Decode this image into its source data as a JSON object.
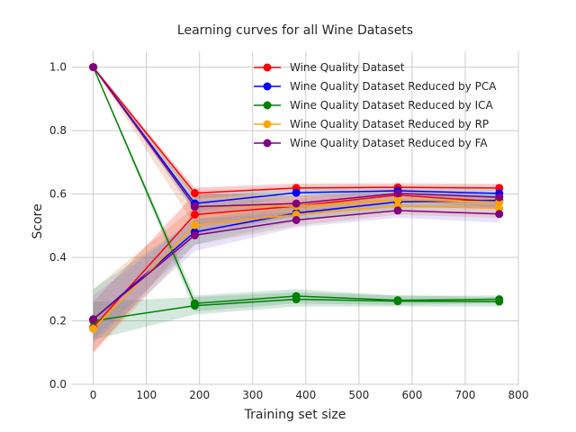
{
  "chart_data": {
    "type": "line",
    "title": "Learning curves for all Wine Datasets",
    "xlabel": "Training set size",
    "ylabel": "Score",
    "xlim": [
      -40,
      800
    ],
    "ylim": [
      0.0,
      1.05
    ],
    "xticks": [
      0,
      100,
      200,
      300,
      400,
      500,
      600,
      700,
      800
    ],
    "yticks": [
      0.0,
      0.2,
      0.4,
      0.6,
      0.8,
      1.0
    ],
    "ytick_labels": [
      "0.0",
      "0.2",
      "0.4",
      "0.6",
      "0.8",
      "1.0"
    ],
    "grid": true,
    "legend_position": "upper-right",
    "x": [
      0,
      191,
      382,
      573,
      764
    ],
    "series": [
      {
        "name": "Wine Quality Dataset",
        "color": "#ff0000",
        "train": [
          1.0,
          0.603,
          0.619,
          0.621,
          0.619
        ],
        "train_band": [
          [
            1.0,
            1.0
          ],
          [
            0.585,
            0.62
          ],
          [
            0.605,
            0.633
          ],
          [
            0.608,
            0.634
          ],
          [
            0.606,
            0.632
          ]
        ],
        "test": [
          0.18,
          0.535,
          0.562,
          0.597,
          0.575
        ],
        "test_band": [
          [
            0.1,
            0.26
          ],
          [
            0.47,
            0.6
          ],
          [
            0.53,
            0.595
          ],
          [
            0.58,
            0.615
          ],
          [
            0.555,
            0.595
          ]
        ]
      },
      {
        "name": "Wine Quality Dataset Reduced by PCA",
        "color": "#0000ff",
        "train": [
          1.0,
          0.57,
          0.604,
          0.61,
          0.602
        ],
        "train_band": [
          [
            1.0,
            1.0
          ],
          [
            0.545,
            0.595
          ],
          [
            0.59,
            0.62
          ],
          [
            0.595,
            0.625
          ],
          [
            0.588,
            0.616
          ]
        ],
        "test": [
          0.205,
          0.48,
          0.54,
          0.575,
          0.58
        ],
        "test_band": [
          [
            0.14,
            0.3
          ],
          [
            0.44,
            0.52
          ],
          [
            0.515,
            0.565
          ],
          [
            0.555,
            0.595
          ],
          [
            0.56,
            0.6
          ]
        ]
      },
      {
        "name": "Wine Quality Dataset Reduced by ICA",
        "color": "#008000",
        "train": [
          1.0,
          0.255,
          0.278,
          0.265,
          0.268
        ],
        "train_band": [
          [
            1.0,
            1.0
          ],
          [
            0.23,
            0.28
          ],
          [
            0.255,
            0.3
          ],
          [
            0.25,
            0.28
          ],
          [
            0.255,
            0.28
          ]
        ],
        "test": [
          0.2,
          0.248,
          0.268,
          0.262,
          0.261
        ],
        "test_band": [
          [
            0.14,
            0.26
          ],
          [
            0.22,
            0.275
          ],
          [
            0.245,
            0.29
          ],
          [
            0.245,
            0.28
          ],
          [
            0.245,
            0.275
          ]
        ]
      },
      {
        "name": "Wine Quality Dataset Reduced by RP",
        "color": "#ffa500",
        "train": [
          1.0,
          0.56,
          0.562,
          0.582,
          0.575
        ],
        "train_band": [
          [
            1.0,
            1.0
          ],
          [
            0.5,
            0.6
          ],
          [
            0.53,
            0.595
          ],
          [
            0.565,
            0.6
          ],
          [
            0.555,
            0.595
          ]
        ],
        "test": [
          0.175,
          0.502,
          0.535,
          0.562,
          0.555
        ],
        "test_band": [
          [
            0.1,
            0.3
          ],
          [
            0.44,
            0.56
          ],
          [
            0.5,
            0.57
          ],
          [
            0.535,
            0.585
          ],
          [
            0.525,
            0.585
          ]
        ]
      },
      {
        "name": "Wine Quality Dataset Reduced by FA",
        "color": "#800080",
        "train": [
          1.0,
          0.56,
          0.57,
          0.602,
          0.59
        ],
        "train_band": [
          [
            1.0,
            1.0
          ],
          [
            0.54,
            0.58
          ],
          [
            0.555,
            0.585
          ],
          [
            0.59,
            0.615
          ],
          [
            0.577,
            0.603
          ]
        ],
        "test": [
          0.205,
          0.47,
          0.518,
          0.548,
          0.537
        ],
        "test_band": [
          [
            0.13,
            0.28
          ],
          [
            0.42,
            0.52
          ],
          [
            0.495,
            0.545
          ],
          [
            0.525,
            0.57
          ],
          [
            0.51,
            0.565
          ]
        ]
      }
    ],
    "band_colors": [
      "#ff0000",
      "#00bcd4",
      "#2e8b57",
      "#d2691e",
      "#9370db"
    ]
  }
}
